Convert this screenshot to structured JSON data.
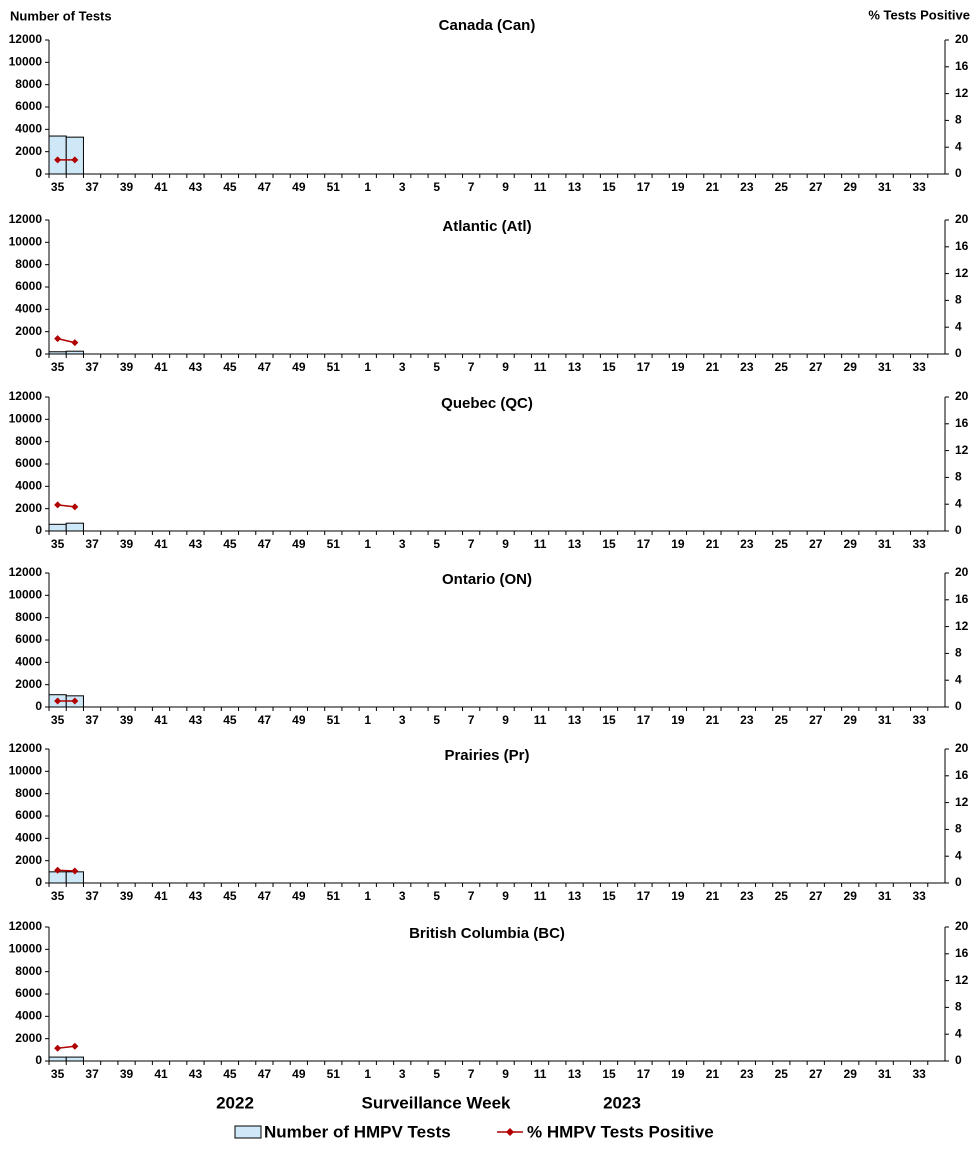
{
  "chart_data": [
    {
      "type": "combo",
      "title": "Canada (Can)",
      "y_label": "Number of Tests",
      "y2_label": "% Tests Positive",
      "categories": [
        "35",
        null,
        "37",
        null,
        "39",
        null,
        "41",
        null,
        "43",
        null,
        "45",
        null,
        "47",
        null,
        "49",
        null,
        "51",
        null,
        "1",
        null,
        "3",
        null,
        "5",
        null,
        "7",
        null,
        "9",
        null,
        "11",
        null,
        "13",
        null,
        "15",
        null,
        "17",
        null,
        "19",
        null,
        "21",
        null,
        "23",
        null,
        "25",
        null,
        "27",
        null,
        "29",
        null,
        "31",
        null,
        "33",
        null
      ],
      "series": [
        {
          "name": "Number of HMPV Tests",
          "type": "bar",
          "color": "#cfe8f8",
          "values": [
            3400,
            3300,
            null,
            null,
            null,
            null,
            null,
            null,
            null,
            null,
            null,
            null,
            null,
            null,
            null,
            null,
            null,
            null,
            null,
            null,
            null,
            null,
            null,
            null,
            null,
            null,
            null,
            null,
            null,
            null,
            null,
            null,
            null,
            null,
            null,
            null,
            null,
            null,
            null,
            null,
            null,
            null,
            null,
            null,
            null,
            null,
            null,
            null,
            null,
            null,
            null,
            null
          ]
        },
        {
          "name": "% HMPV Tests Positive",
          "type": "line",
          "axis": "y2",
          "color": "#b00000",
          "values": [
            2.1,
            2.1,
            null,
            null,
            null,
            null,
            null,
            null,
            null,
            null,
            null,
            null,
            null,
            null,
            null,
            null,
            null,
            null,
            null,
            null,
            null,
            null,
            null,
            null,
            null,
            null,
            null,
            null,
            null,
            null,
            null,
            null,
            null,
            null,
            null,
            null,
            null,
            null,
            null,
            null,
            null,
            null,
            null,
            null,
            null,
            null,
            null,
            null,
            null,
            null,
            null,
            null
          ]
        }
      ],
      "ylim": [
        0,
        12000
      ],
      "yticks": [
        0,
        2000,
        4000,
        6000,
        8000,
        10000,
        12000
      ],
      "y2lim": [
        0,
        20
      ],
      "y2ticks": [
        0,
        4,
        8,
        12,
        16,
        20
      ]
    },
    {
      "type": "combo",
      "title": "Atlantic (Atl)",
      "categories": [
        "35",
        null,
        "37",
        null,
        "39",
        null,
        "41",
        null,
        "43",
        null,
        "45",
        null,
        "47",
        null,
        "49",
        null,
        "51",
        null,
        "1",
        null,
        "3",
        null,
        "5",
        null,
        "7",
        null,
        "9",
        null,
        "11",
        null,
        "13",
        null,
        "15",
        null,
        "17",
        null,
        "19",
        null,
        "21",
        null,
        "23",
        null,
        "25",
        null,
        "27",
        null,
        "29",
        null,
        "31",
        null,
        "33",
        null
      ],
      "series": [
        {
          "type": "bar",
          "color": "#cfe8f8",
          "values": [
            200,
            250,
            null,
            null,
            null,
            null,
            null,
            null,
            null,
            null,
            null,
            null,
            null,
            null,
            null,
            null,
            null,
            null,
            null,
            null,
            null,
            null,
            null,
            null,
            null,
            null,
            null,
            null,
            null,
            null,
            null,
            null,
            null,
            null,
            null,
            null,
            null,
            null,
            null,
            null,
            null,
            null,
            null,
            null,
            null,
            null,
            null,
            null,
            null,
            null,
            null,
            null
          ]
        },
        {
          "type": "line",
          "axis": "y2",
          "color": "#b00000",
          "values": [
            2.3,
            1.7,
            null,
            null,
            null,
            null,
            null,
            null,
            null,
            null,
            null,
            null,
            null,
            null,
            null,
            null,
            null,
            null,
            null,
            null,
            null,
            null,
            null,
            null,
            null,
            null,
            null,
            null,
            null,
            null,
            null,
            null,
            null,
            null,
            null,
            null,
            null,
            null,
            null,
            null,
            null,
            null,
            null,
            null,
            null,
            null,
            null,
            null,
            null,
            null,
            null,
            null
          ]
        }
      ],
      "ylim": [
        0,
        12000
      ],
      "yticks": [
        0,
        2000,
        4000,
        6000,
        8000,
        10000,
        12000
      ],
      "y2lim": [
        0,
        20
      ],
      "y2ticks": [
        0,
        4,
        8,
        12,
        16,
        20
      ]
    },
    {
      "type": "combo",
      "title": "Quebec (QC)",
      "categories": [
        "35",
        null,
        "37",
        null,
        "39",
        null,
        "41",
        null,
        "43",
        null,
        "45",
        null,
        "47",
        null,
        "49",
        null,
        "51",
        null,
        "1",
        null,
        "3",
        null,
        "5",
        null,
        "7",
        null,
        "9",
        null,
        "11",
        null,
        "13",
        null,
        "15",
        null,
        "17",
        null,
        "19",
        null,
        "21",
        null,
        "23",
        null,
        "25",
        null,
        "27",
        null,
        "29",
        null,
        "31",
        null,
        "33",
        null
      ],
      "series": [
        {
          "type": "bar",
          "color": "#cfe8f8",
          "values": [
            600,
            700,
            null,
            null,
            null,
            null,
            null,
            null,
            null,
            null,
            null,
            null,
            null,
            null,
            null,
            null,
            null,
            null,
            null,
            null,
            null,
            null,
            null,
            null,
            null,
            null,
            null,
            null,
            null,
            null,
            null,
            null,
            null,
            null,
            null,
            null,
            null,
            null,
            null,
            null,
            null,
            null,
            null,
            null,
            null,
            null,
            null,
            null,
            null,
            null,
            null,
            null
          ]
        },
        {
          "type": "line",
          "axis": "y2",
          "color": "#b00000",
          "values": [
            3.9,
            3.6,
            null,
            null,
            null,
            null,
            null,
            null,
            null,
            null,
            null,
            null,
            null,
            null,
            null,
            null,
            null,
            null,
            null,
            null,
            null,
            null,
            null,
            null,
            null,
            null,
            null,
            null,
            null,
            null,
            null,
            null,
            null,
            null,
            null,
            null,
            null,
            null,
            null,
            null,
            null,
            null,
            null,
            null,
            null,
            null,
            null,
            null,
            null,
            null,
            null,
            null
          ]
        }
      ],
      "ylim": [
        0,
        12000
      ],
      "yticks": [
        0,
        2000,
        4000,
        6000,
        8000,
        10000,
        12000
      ],
      "y2lim": [
        0,
        20
      ],
      "y2ticks": [
        0,
        4,
        8,
        12,
        16,
        20
      ]
    },
    {
      "type": "combo",
      "title": "Ontario (ON)",
      "categories": [
        "35",
        null,
        "37",
        null,
        "39",
        null,
        "41",
        null,
        "43",
        null,
        "45",
        null,
        "47",
        null,
        "49",
        null,
        "51",
        null,
        "1",
        null,
        "3",
        null,
        "5",
        null,
        "7",
        null,
        "9",
        null,
        "11",
        null,
        "13",
        null,
        "15",
        null,
        "17",
        null,
        "19",
        null,
        "21",
        null,
        "23",
        null,
        "25",
        null,
        "27",
        null,
        "29",
        null,
        "31",
        null,
        "33",
        null
      ],
      "series": [
        {
          "type": "bar",
          "color": "#cfe8f8",
          "values": [
            1100,
            1000,
            null,
            null,
            null,
            null,
            null,
            null,
            null,
            null,
            null,
            null,
            null,
            null,
            null,
            null,
            null,
            null,
            null,
            null,
            null,
            null,
            null,
            null,
            null,
            null,
            null,
            null,
            null,
            null,
            null,
            null,
            null,
            null,
            null,
            null,
            null,
            null,
            null,
            null,
            null,
            null,
            null,
            null,
            null,
            null,
            null,
            null,
            null,
            null,
            null,
            null
          ]
        },
        {
          "type": "line",
          "axis": "y2",
          "color": "#b00000",
          "values": [
            0.9,
            0.9,
            null,
            null,
            null,
            null,
            null,
            null,
            null,
            null,
            null,
            null,
            null,
            null,
            null,
            null,
            null,
            null,
            null,
            null,
            null,
            null,
            null,
            null,
            null,
            null,
            null,
            null,
            null,
            null,
            null,
            null,
            null,
            null,
            null,
            null,
            null,
            null,
            null,
            null,
            null,
            null,
            null,
            null,
            null,
            null,
            null,
            null,
            null,
            null,
            null,
            null
          ]
        }
      ],
      "ylim": [
        0,
        12000
      ],
      "yticks": [
        0,
        2000,
        4000,
        6000,
        8000,
        10000,
        12000
      ],
      "y2lim": [
        0,
        20
      ],
      "y2ticks": [
        0,
        4,
        8,
        12,
        16,
        20
      ]
    },
    {
      "type": "combo",
      "title": "Prairies (Pr)",
      "categories": [
        "35",
        null,
        "37",
        null,
        "39",
        null,
        "41",
        null,
        "43",
        null,
        "45",
        null,
        "47",
        null,
        "49",
        null,
        "51",
        null,
        "1",
        null,
        "3",
        null,
        "5",
        null,
        "7",
        null,
        "9",
        null,
        "11",
        null,
        "13",
        null,
        "15",
        null,
        "17",
        null,
        "19",
        null,
        "21",
        null,
        "23",
        null,
        "25",
        null,
        "27",
        null,
        "29",
        null,
        "31",
        null,
        "33",
        null
      ],
      "series": [
        {
          "type": "bar",
          "color": "#cfe8f8",
          "values": [
            1000,
            1000,
            null,
            null,
            null,
            null,
            null,
            null,
            null,
            null,
            null,
            null,
            null,
            null,
            null,
            null,
            null,
            null,
            null,
            null,
            null,
            null,
            null,
            null,
            null,
            null,
            null,
            null,
            null,
            null,
            null,
            null,
            null,
            null,
            null,
            null,
            null,
            null,
            null,
            null,
            null,
            null,
            null,
            null,
            null,
            null,
            null,
            null,
            null,
            null,
            null,
            null
          ]
        },
        {
          "type": "line",
          "axis": "y2",
          "color": "#b00000",
          "values": [
            1.9,
            1.8,
            null,
            null,
            null,
            null,
            null,
            null,
            null,
            null,
            null,
            null,
            null,
            null,
            null,
            null,
            null,
            null,
            null,
            null,
            null,
            null,
            null,
            null,
            null,
            null,
            null,
            null,
            null,
            null,
            null,
            null,
            null,
            null,
            null,
            null,
            null,
            null,
            null,
            null,
            null,
            null,
            null,
            null,
            null,
            null,
            null,
            null,
            null,
            null,
            null,
            null
          ]
        }
      ],
      "ylim": [
        0,
        12000
      ],
      "yticks": [
        0,
        2000,
        4000,
        6000,
        8000,
        10000,
        12000
      ],
      "y2lim": [
        0,
        20
      ],
      "y2ticks": [
        0,
        4,
        8,
        12,
        16,
        20
      ]
    },
    {
      "type": "combo",
      "title": "British Columbia (BC)",
      "x_label": "Surveillance Week",
      "annotations": [
        "2022",
        "2023"
      ],
      "categories": [
        "35",
        null,
        "37",
        null,
        "39",
        null,
        "41",
        null,
        "43",
        null,
        "45",
        null,
        "47",
        null,
        "49",
        null,
        "51",
        null,
        "1",
        null,
        "3",
        null,
        "5",
        null,
        "7",
        null,
        "9",
        null,
        "11",
        null,
        "13",
        null,
        "15",
        null,
        "17",
        null,
        "19",
        null,
        "21",
        null,
        "23",
        null,
        "25",
        null,
        "27",
        null,
        "29",
        null,
        "31",
        null,
        "33",
        null
      ],
      "series": [
        {
          "type": "bar",
          "color": "#cfe8f8",
          "values": [
            350,
            350,
            null,
            null,
            null,
            null,
            null,
            null,
            null,
            null,
            null,
            null,
            null,
            null,
            null,
            null,
            null,
            null,
            null,
            null,
            null,
            null,
            null,
            null,
            null,
            null,
            null,
            null,
            null,
            null,
            null,
            null,
            null,
            null,
            null,
            null,
            null,
            null,
            null,
            null,
            null,
            null,
            null,
            null,
            null,
            null,
            null,
            null,
            null,
            null,
            null,
            null
          ]
        },
        {
          "type": "line",
          "axis": "y2",
          "color": "#b00000",
          "values": [
            1.9,
            2.2,
            null,
            null,
            null,
            null,
            null,
            null,
            null,
            null,
            null,
            null,
            null,
            null,
            null,
            null,
            null,
            null,
            null,
            null,
            null,
            null,
            null,
            null,
            null,
            null,
            null,
            null,
            null,
            null,
            null,
            null,
            null,
            null,
            null,
            null,
            null,
            null,
            null,
            null,
            null,
            null,
            null,
            null,
            null,
            null,
            null,
            null,
            null,
            null,
            null,
            null
          ]
        }
      ],
      "ylim": [
        0,
        12000
      ],
      "yticks": [
        0,
        2000,
        4000,
        6000,
        8000,
        10000,
        12000
      ],
      "y2lim": [
        0,
        20
      ],
      "y2ticks": [
        0,
        4,
        8,
        12,
        16,
        20
      ]
    }
  ]
}
